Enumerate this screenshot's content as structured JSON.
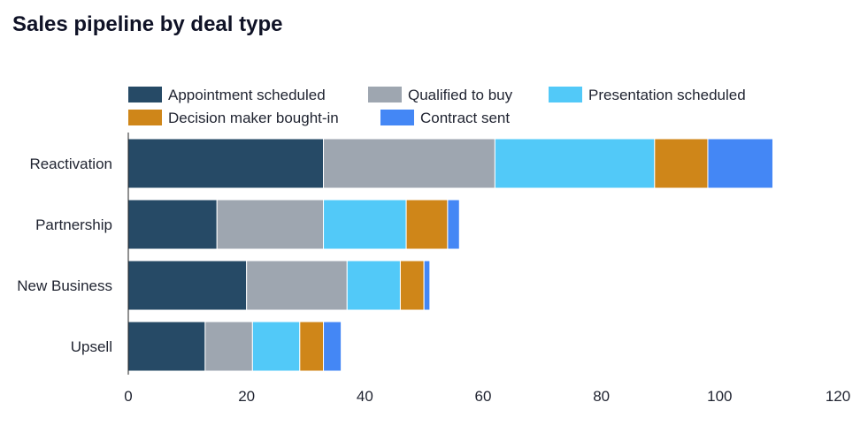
{
  "chart_data": {
    "type": "bar",
    "orientation": "horizontal",
    "stacked": true,
    "title": "Sales pipeline by deal type",
    "xlabel": "",
    "ylabel": "",
    "xlim": [
      0,
      120
    ],
    "xticks": [
      0,
      20,
      40,
      60,
      80,
      100,
      120
    ],
    "grid": false,
    "legend_position": "top",
    "categories": [
      "Reactivation",
      "Partnership",
      "New Business",
      "Upsell"
    ],
    "series": [
      {
        "name": "Appointment scheduled",
        "color": "#264a66",
        "values": [
          33,
          15,
          20,
          13
        ]
      },
      {
        "name": "Qualified to buy",
        "color": "#9ea6b0",
        "values": [
          29,
          18,
          17,
          8
        ]
      },
      {
        "name": "Presentation scheduled",
        "color": "#52c9f8",
        "values": [
          27,
          14,
          9,
          8
        ]
      },
      {
        "name": "Decision maker bought-in",
        "color": "#cf8619",
        "values": [
          9,
          7,
          4,
          4
        ]
      },
      {
        "name": "Contract sent",
        "color": "#4487f5",
        "values": [
          11,
          2,
          1,
          3
        ]
      }
    ]
  }
}
